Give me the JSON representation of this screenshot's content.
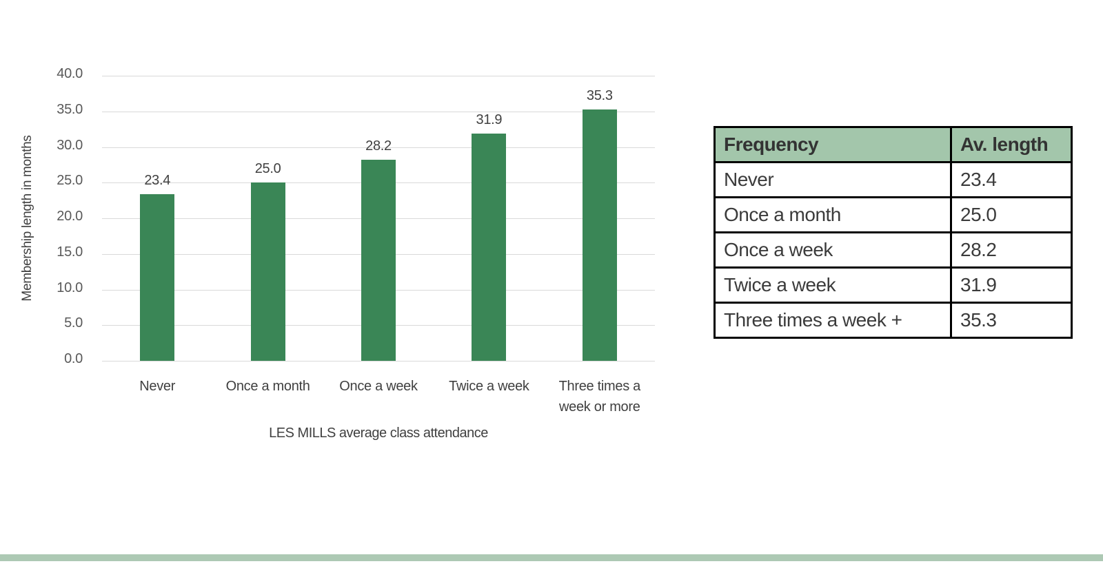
{
  "chart_data": {
    "type": "bar",
    "categories": [
      "Never",
      "Once a month",
      "Once a week",
      "Twice a week",
      "Three times a week or more"
    ],
    "x_tick_display": [
      "Never",
      "Once a month",
      "Once a week",
      "Twice a week",
      "Three times a\nweek or more"
    ],
    "values": [
      23.4,
      25.0,
      28.2,
      31.9,
      35.3
    ],
    "value_labels": [
      "23.4",
      "25.0",
      "28.2",
      "31.9",
      "35.3"
    ],
    "title": "",
    "xlabel": "LES MILLS average class attendance",
    "ylabel": "Membership length in months",
    "ylim": [
      0,
      40
    ],
    "ytick_step": 5,
    "ytick_labels": [
      "40.0",
      "35.0",
      "30.0",
      "25.0",
      "20.0",
      "15.0",
      "10.0",
      "5.0",
      "0.0"
    ],
    "grid": true,
    "legend_position": "none",
    "bar_color": "#3a8656",
    "gridline_color": "#d9d9d9"
  },
  "table": {
    "headers": [
      "Frequency",
      "Av. length"
    ],
    "rows": [
      [
        "Never",
        "23.4"
      ],
      [
        "Once a month",
        "25.0"
      ],
      [
        "Once a week",
        "28.2"
      ],
      [
        "Twice a week",
        "31.9"
      ],
      [
        "Three times a week +",
        "35.3"
      ]
    ],
    "header_bg": "#a3c6ab"
  },
  "footer": {
    "band_color": "#adc9b4"
  }
}
